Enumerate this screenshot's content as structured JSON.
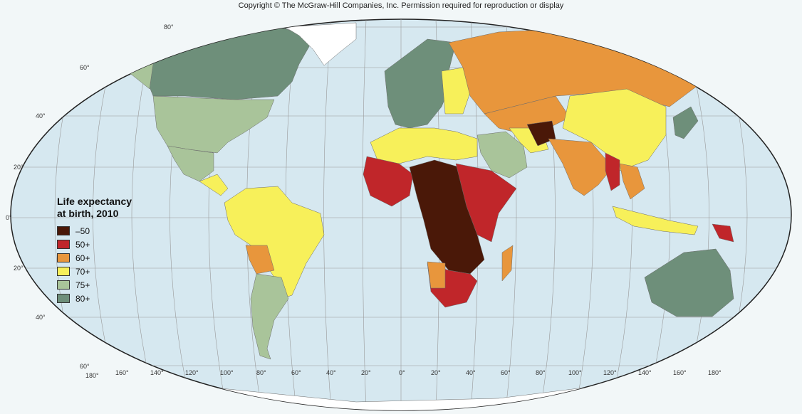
{
  "copyright": "Copyright © The McGraw-Hill Companies, Inc. Permission required for reproduction or display",
  "legend": {
    "title_line1": "Life expectancy",
    "title_line2": "at birth, 2010",
    "items": [
      {
        "label": "–50",
        "color": "#4a1808"
      },
      {
        "label": "50+",
        "color": "#c0262a"
      },
      {
        "label": "60+",
        "color": "#e8963c"
      },
      {
        "label": "70+",
        "color": "#f7f05a"
      },
      {
        "label": "75+",
        "color": "#a9c49a"
      },
      {
        "label": "80+",
        "color": "#6e8f7a"
      }
    ]
  },
  "latitude_labels": [
    "80°",
    "60°",
    "40°",
    "20°",
    "0°",
    "20°",
    "40°",
    "60°"
  ],
  "longitude_labels": [
    "180°",
    "160°",
    "140°",
    "120°",
    "100°",
    "80°",
    "60°",
    "40°",
    "20°",
    "0°",
    "20°",
    "40°",
    "60°",
    "80°",
    "100°",
    "120°",
    "140°",
    "160°",
    "180°"
  ],
  "ocean_color": "#d6e8f0"
}
